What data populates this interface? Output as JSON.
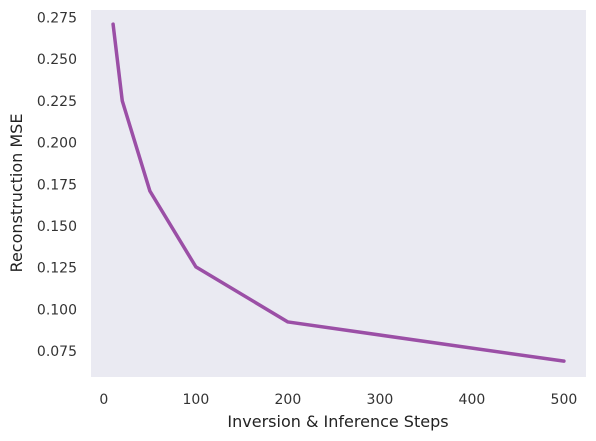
{
  "chart_data": {
    "type": "line",
    "title": "",
    "xlabel": "Inversion & Inference Steps",
    "ylabel": "Reconstruction MSE",
    "xlim": [
      -14,
      524
    ],
    "ylim": [
      0.0595,
      0.2795
    ],
    "xticks": [
      0,
      100,
      200,
      300,
      400,
      500
    ],
    "yticks": [
      0.075,
      0.1,
      0.125,
      0.15,
      0.175,
      0.2,
      0.225,
      0.25,
      0.275
    ],
    "xtick_labels": [
      "0",
      "100",
      "200",
      "300",
      "400",
      "500"
    ],
    "ytick_labels": [
      "0.075",
      "0.100",
      "0.125",
      "0.150",
      "0.175",
      "0.200",
      "0.225",
      "0.250",
      "0.275"
    ],
    "grid": false,
    "legend": "none",
    "series": [
      {
        "x": [
          10,
          20,
          50,
          100,
          200,
          500
        ],
        "y": [
          0.271,
          0.225,
          0.171,
          0.1255,
          0.0925,
          0.069
        ],
        "color": "#9b4fa6"
      }
    ],
    "colors": {
      "plot_background": "#eaeaf2",
      "line": "#9b4fa6"
    }
  }
}
